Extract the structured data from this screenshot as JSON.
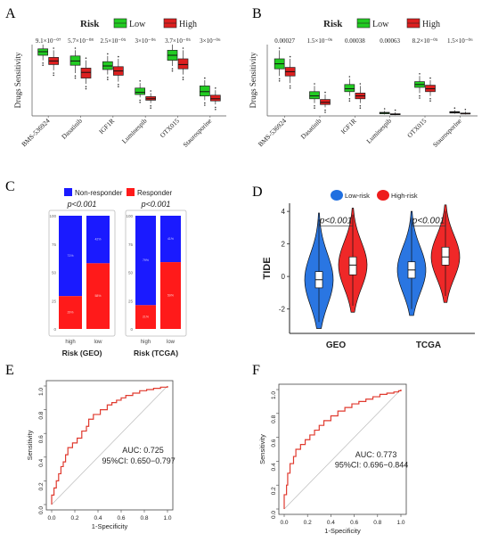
{
  "panels": {
    "A": {
      "letter": "A"
    },
    "B": {
      "letter": "B"
    },
    "C": {
      "letter": "C"
    },
    "D": {
      "letter": "D"
    },
    "E": {
      "letter": "E"
    },
    "F": {
      "letter": "F"
    }
  },
  "colors": {
    "low_green": "#22cc22",
    "high_red": "#dd1f1f",
    "nonresp_blue": "#1a1aff",
    "resp_red": "#ff1a1a",
    "violin_blue": "#1f6fe0",
    "violin_red": "#ee1c1c",
    "roc": "#e03a2f"
  },
  "chart_data": [
    {
      "id": "A",
      "type": "box",
      "legend_title": "Risk",
      "legend": [
        "Low",
        "High"
      ],
      "legend_position": "top",
      "ylabel": "Drugs Sensitivity",
      "categories": [
        "BMS-536924",
        "Dasatinib",
        "IGF1R",
        "Luminespib",
        "OTX015",
        "Staurosporine"
      ],
      "pvalues": [
        "9.1×10⁻⁰⁷",
        "5.7×10⁻⁰⁸",
        "2.5×10⁻⁰⁵",
        "3×10⁻⁰⁶",
        "3.7×10⁻⁰⁵",
        "3×10⁻⁰⁶"
      ],
      "ylim": [
        0,
        100
      ],
      "series": [
        {
          "name": "Low",
          "boxes": [
            [
              78,
              85,
              90,
              94,
              100
            ],
            [
              60,
              71,
              77,
              84,
              92
            ],
            [
              58,
              65,
              70,
              76,
              84
            ],
            [
              26,
              30,
              33,
              39,
              46
            ],
            [
              70,
              78,
              85,
              92,
              100
            ],
            [
              22,
              28,
              34,
              42,
              50
            ]
          ]
        },
        {
          "name": "High",
          "boxes": [
            [
              64,
              72,
              77,
              82,
              92
            ],
            [
              45,
              53,
              61,
              67,
              78
            ],
            [
              48,
              57,
              63,
              69,
              80
            ],
            [
              18,
              22,
              24,
              27,
              32
            ],
            [
              58,
              66,
              72,
              80,
              92
            ],
            [
              16,
              21,
              24,
              29,
              36
            ]
          ]
        }
      ]
    },
    {
      "id": "B",
      "type": "box",
      "legend_title": "Risk",
      "legend": [
        "Low",
        "High"
      ],
      "legend_position": "top",
      "ylabel": "Drugs Sensitivity",
      "categories": [
        "BMS-536924",
        "Dasatinib",
        "IGF1R",
        "Luminespib",
        "OTX015",
        "Staurosporine"
      ],
      "pvalues": [
        "0.00027",
        "1.5×10⁻⁰⁶",
        "0.00038",
        "0.00063",
        "8.2×10⁻⁰⁵",
        "1.5×10⁻⁰⁶"
      ],
      "ylim": [
        0,
        100
      ],
      "series": [
        {
          "name": "Low",
          "boxes": [
            [
              56,
              66,
              73,
              80,
              92
            ],
            [
              18,
              24,
              28,
              34,
              42
            ],
            [
              28,
              34,
              38,
              44,
              52
            ],
            [
              2,
              3,
              4,
              5,
              7
            ],
            [
              32,
              40,
              44,
              48,
              56
            ],
            [
              3,
              4,
              5,
              6,
              8
            ]
          ]
        },
        {
          "name": "High",
          "boxes": [
            [
              46,
              56,
              62,
              68,
              80
            ],
            [
              12,
              16,
              19,
              23,
              30
            ],
            [
              18,
              24,
              28,
              32,
              42
            ],
            [
              1,
              2,
              2,
              3,
              5
            ],
            [
              28,
              34,
              38,
              43,
              50
            ],
            [
              2,
              3,
              3,
              4,
              6
            ]
          ]
        }
      ]
    },
    {
      "id": "C",
      "type": "stacked-bar",
      "legend": [
        "Non-responder",
        "Responder"
      ],
      "legend_position": "top",
      "groups": [
        {
          "title": "Risk (GEO)",
          "pvalue": "p<0.001",
          "categories": [
            "high",
            "low"
          ],
          "responder": [
            29,
            58
          ],
          "nonresponder": [
            71,
            42
          ],
          "inner_labels": [
            [
              "71%",
              "29%"
            ],
            [
              "42%",
              "58%"
            ]
          ]
        },
        {
          "title": "Risk (TCGA)",
          "pvalue": "p<0.001",
          "categories": [
            "high",
            "low"
          ],
          "responder": [
            21,
            59
          ],
          "nonresponder": [
            79,
            41
          ],
          "inner_labels": [
            [
              "79%",
              "21%"
            ],
            [
              "41%",
              "59%"
            ]
          ]
        }
      ],
      "ylim": [
        0,
        100
      ],
      "yticks": [
        0,
        25,
        50,
        75,
        100
      ]
    },
    {
      "id": "D",
      "type": "violin",
      "legend": [
        "Low-risk",
        "High-risk"
      ],
      "legend_position": "top",
      "ylabel": "TIDE",
      "categories": [
        "GEO",
        "TCGA"
      ],
      "pvalues": [
        "p<0.001",
        "p<0.001"
      ],
      "ylim": [
        -3.5,
        4.5
      ],
      "yticks": [
        -2,
        0,
        2,
        4
      ],
      "series": [
        {
          "name": "Low-risk",
          "median": [
            -0.2,
            0.4
          ],
          "q1": [
            -0.7,
            -0.1
          ],
          "q3": [
            0.3,
            0.9
          ],
          "min": [
            -3.2,
            -2.4
          ],
          "max": [
            3.9,
            4.0
          ]
        },
        {
          "name": "High-risk",
          "median": [
            0.7,
            1.2
          ],
          "q1": [
            0.1,
            0.7
          ],
          "q3": [
            1.2,
            1.8
          ],
          "min": [
            -2.2,
            -1.6
          ],
          "max": [
            4.2,
            4.4
          ]
        }
      ]
    },
    {
      "id": "E",
      "type": "roc",
      "xlabel": "1-Specificity",
      "ylabel": "Sensitivity",
      "auc_text": "AUC: 0.725",
      "ci_text": "95%CI: 0.650−0.797",
      "xticks": [
        "0.0",
        "0.2",
        "0.4",
        "0.6",
        "0.8",
        "1.0"
      ],
      "yticks": [
        "0.0",
        "0.2",
        "0.4",
        "0.6",
        "0.8",
        "1.0"
      ],
      "curve_x": [
        0,
        0,
        0.02,
        0.04,
        0.06,
        0.08,
        0.1,
        0.12,
        0.14,
        0.18,
        0.22,
        0.26,
        0.3,
        0.32,
        0.36,
        0.42,
        0.48,
        0.52,
        0.56,
        0.6,
        0.64,
        0.7,
        0.76,
        0.82,
        0.88,
        0.94,
        1.0
      ],
      "curve_y": [
        0,
        0.08,
        0.14,
        0.2,
        0.26,
        0.32,
        0.36,
        0.42,
        0.48,
        0.52,
        0.56,
        0.62,
        0.66,
        0.72,
        0.76,
        0.8,
        0.84,
        0.86,
        0.88,
        0.9,
        0.92,
        0.94,
        0.96,
        0.97,
        0.98,
        0.99,
        1.0
      ]
    },
    {
      "id": "F",
      "type": "roc",
      "xlabel": "1-Specificity",
      "ylabel": "Sensitivity",
      "auc_text": "AUC: 0.773",
      "ci_text": "95%CI: 0.696−0.844",
      "xticks": [
        "0.0",
        "0.2",
        "0.4",
        "0.6",
        "0.8",
        "1.0"
      ],
      "yticks": [
        "0.0",
        "0.2",
        "0.4",
        "0.6",
        "0.8",
        "1.0"
      ],
      "curve_x": [
        0,
        0,
        0.02,
        0.03,
        0.05,
        0.08,
        0.1,
        0.14,
        0.18,
        0.22,
        0.26,
        0.3,
        0.34,
        0.4,
        0.46,
        0.52,
        0.58,
        0.64,
        0.7,
        0.76,
        0.82,
        0.88,
        0.94,
        0.98,
        1.0
      ],
      "curve_y": [
        0,
        0.12,
        0.2,
        0.3,
        0.38,
        0.44,
        0.5,
        0.54,
        0.58,
        0.62,
        0.66,
        0.7,
        0.74,
        0.78,
        0.82,
        0.85,
        0.88,
        0.9,
        0.92,
        0.94,
        0.96,
        0.97,
        0.98,
        0.99,
        1.0
      ]
    }
  ]
}
